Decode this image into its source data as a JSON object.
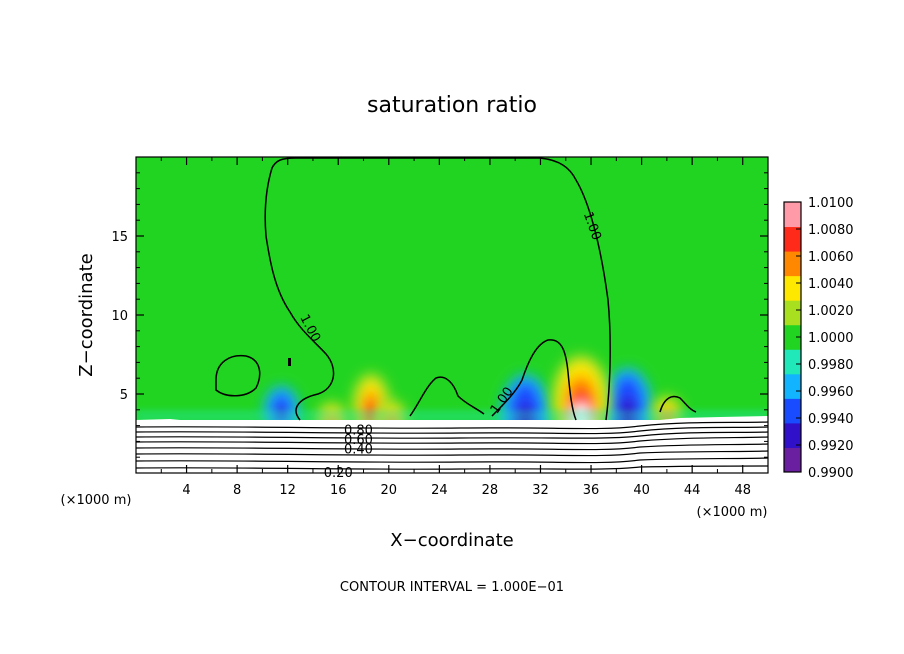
{
  "chart_data": {
    "type": "heatmap",
    "title": "saturation ratio",
    "xlabel": "X−coordinate",
    "ylabel": "Z−coordinate",
    "x_unit_left": "(×1000 m)",
    "x_unit_right": "(×1000 m)",
    "xlim": [
      0,
      50
    ],
    "ylim": [
      0,
      20
    ],
    "x_ticks": [
      4,
      8,
      12,
      16,
      20,
      24,
      28,
      32,
      36,
      40,
      44,
      48
    ],
    "y_ticks": [
      5,
      10,
      15
    ],
    "contour_interval_text": "CONTOUR INTERVAL = 1.000E−01",
    "contour_labels": [
      {
        "text": "1.00",
        "x": 13.5,
        "z": 9.3
      },
      {
        "text": "1.00",
        "x": 35.8,
        "z": 15.8
      },
      {
        "text": "1.00",
        "x": 29.2,
        "z": 4.7
      },
      {
        "text": "0.80",
        "x": 17.6,
        "z": 2.7
      },
      {
        "text": "0.60",
        "x": 17.6,
        "z": 2.1
      },
      {
        "text": "0.40",
        "x": 17.6,
        "z": 1.5
      },
      {
        "text": "0.20",
        "x": 16.0,
        "z": 0.0
      }
    ],
    "colorbar": {
      "min": 0.99,
      "max": 1.01,
      "labels": [
        "1.0100",
        "1.0080",
        "1.0060",
        "1.0040",
        "1.0020",
        "1.0000",
        "0.9980",
        "0.9960",
        "0.9940",
        "0.9920",
        "0.9900"
      ],
      "colors": [
        "#6a1fa0",
        "#3010c8",
        "#1a4cff",
        "#12b4ff",
        "#20e8b8",
        "#22d422",
        "#a8e020",
        "#ffe800",
        "#ff8800",
        "#ff2a1a",
        "#ff9aa8"
      ]
    },
    "features": [
      {
        "kind": "dry",
        "x": 30.8,
        "z": 3.6
      },
      {
        "kind": "dry",
        "x": 38.9,
        "z": 4.0
      },
      {
        "kind": "dry",
        "x": 11.5,
        "z": 4.0
      },
      {
        "kind": "moist",
        "x": 35.2,
        "z": 4.6
      },
      {
        "kind": "moist",
        "x": 18.6,
        "z": 4.2
      },
      {
        "kind": "moist",
        "x": 20.2,
        "z": 3.5
      },
      {
        "kind": "moist",
        "x": 15.5,
        "z": 3.4
      },
      {
        "kind": "moist",
        "x": 42.0,
        "z": 3.8
      }
    ]
  }
}
